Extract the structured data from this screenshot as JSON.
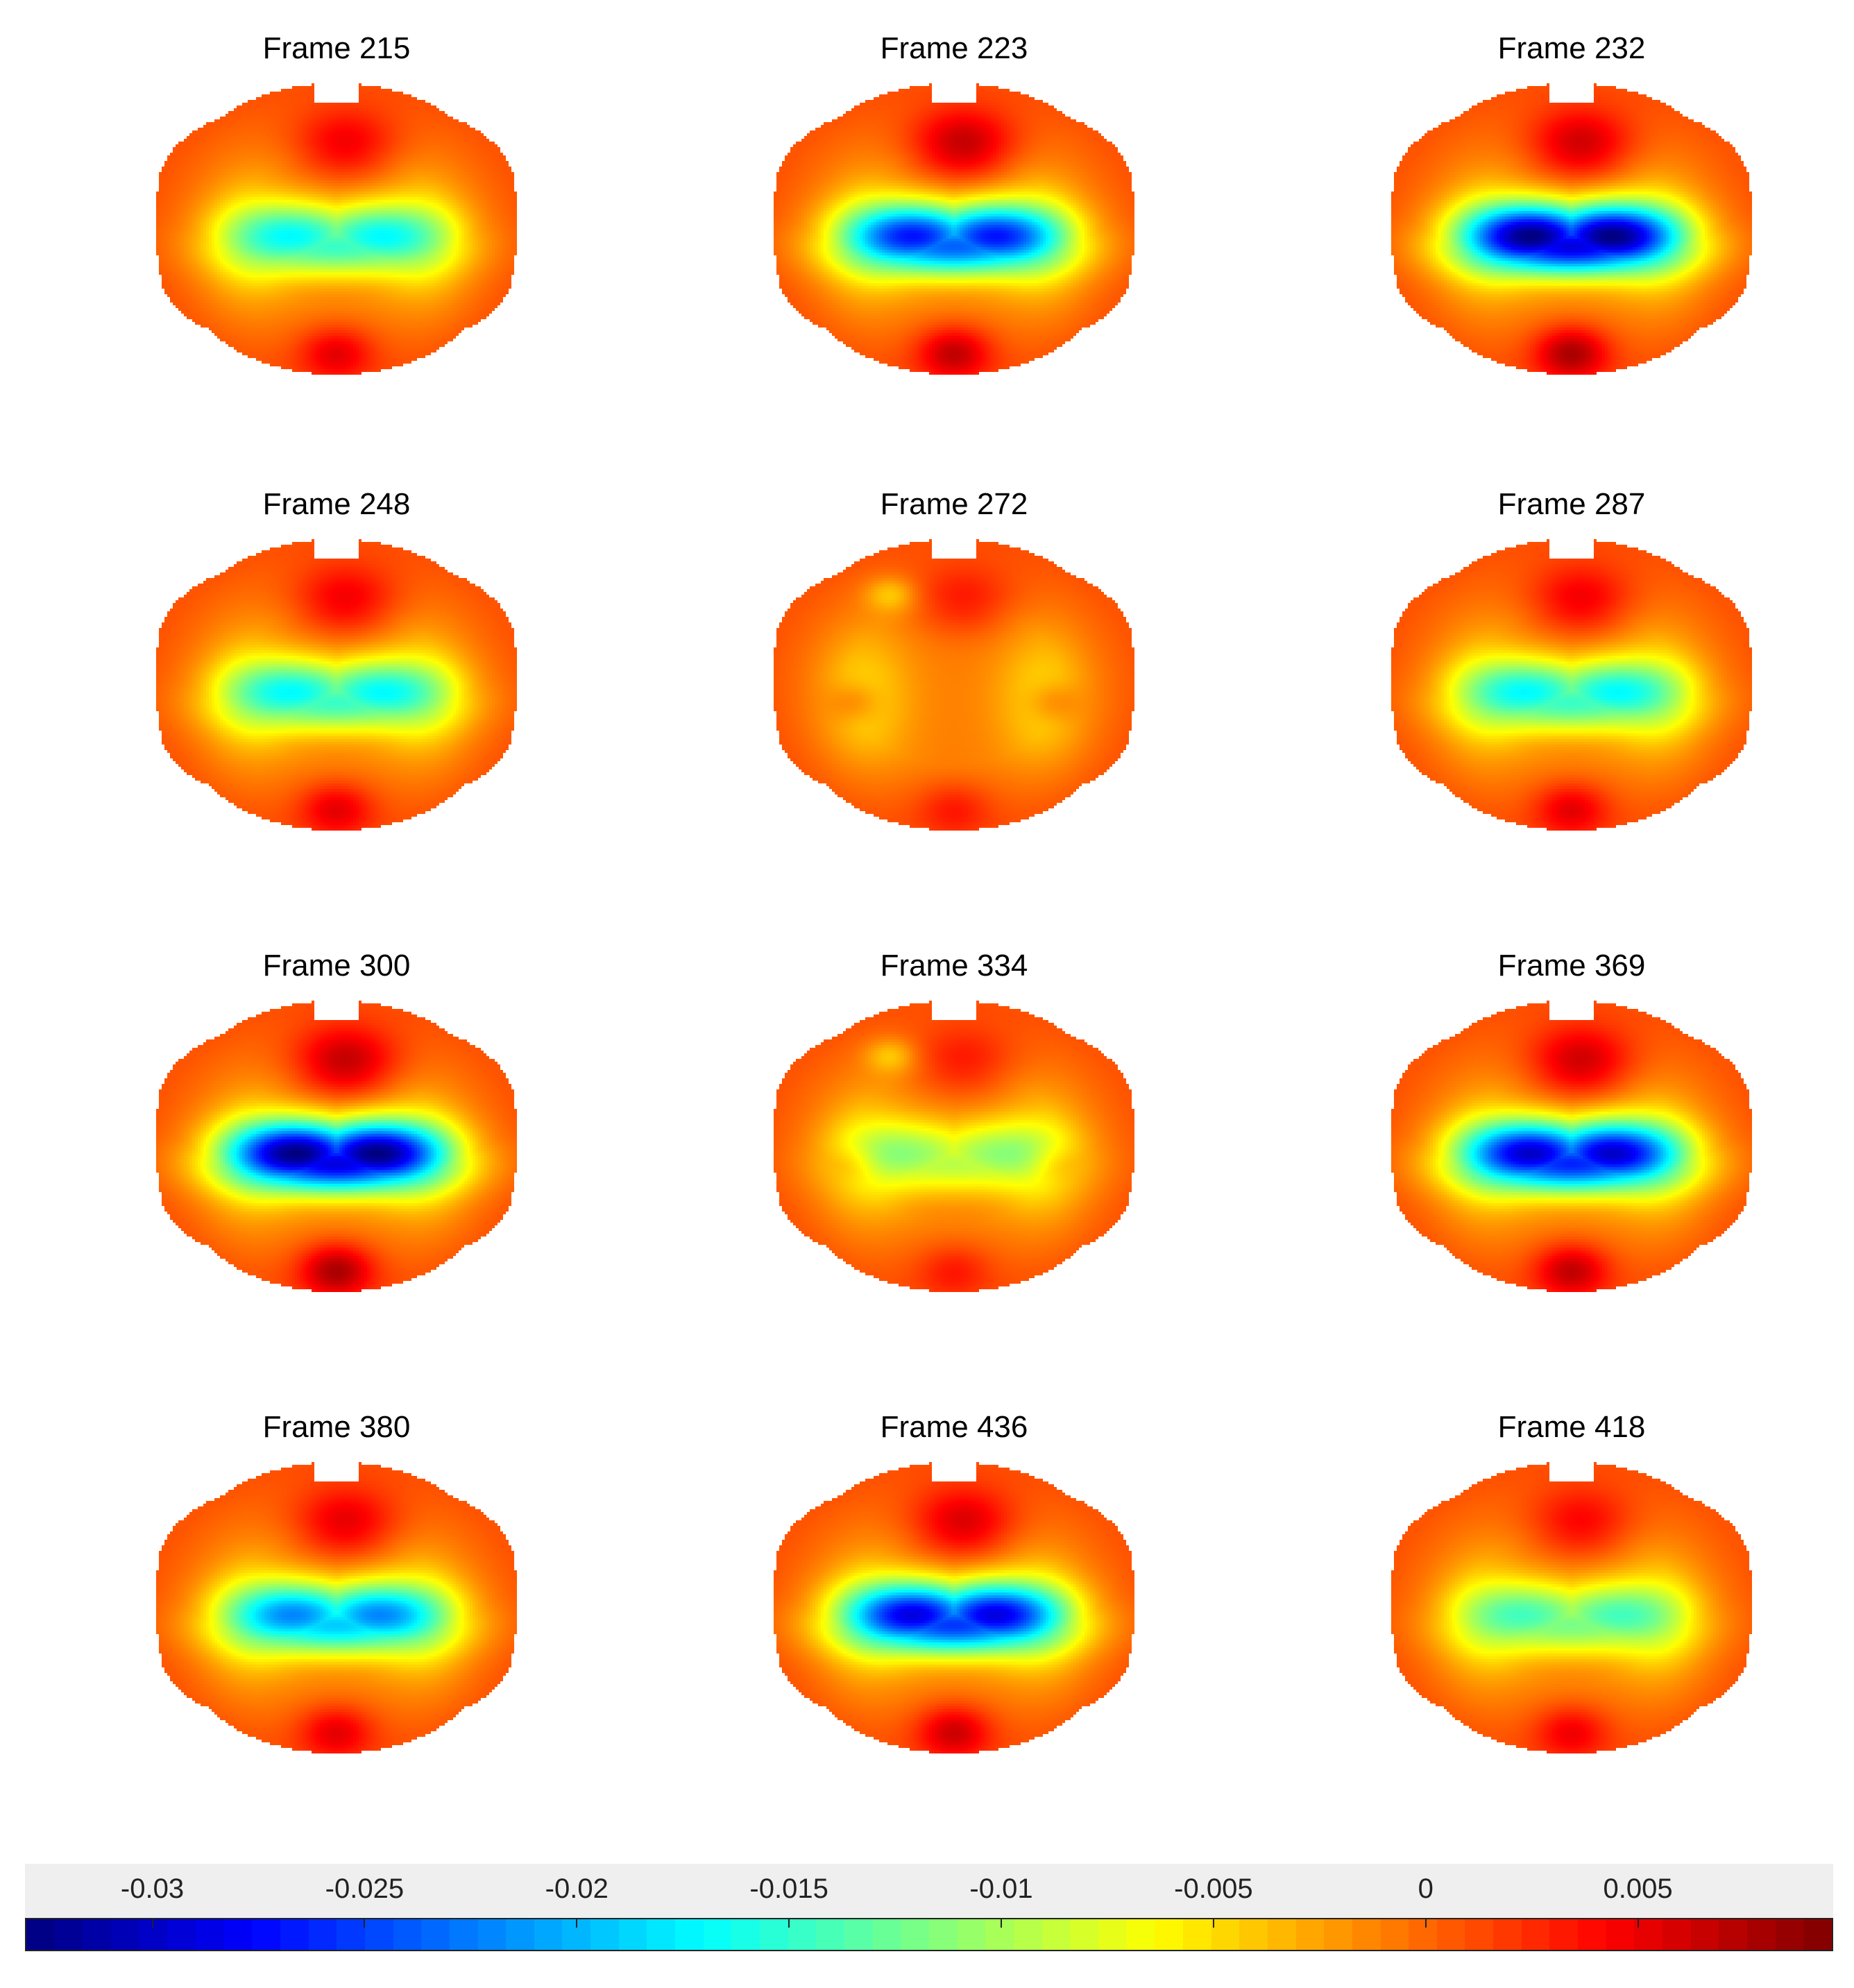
{
  "chart_data": {
    "type": "heatmap",
    "panels": [
      {
        "title": "Frame 215",
        "frame": 215,
        "center_min": -0.014,
        "top_blob": 0.0055,
        "bottom_blob": 0.005
      },
      {
        "title": "Frame 223",
        "frame": 223,
        "center_min": -0.024,
        "top_blob": 0.0075,
        "bottom_blob": 0.0065
      },
      {
        "title": "Frame 232",
        "frame": 232,
        "center_min": -0.03,
        "top_blob": 0.007,
        "bottom_blob": 0.0075
      },
      {
        "title": "Frame 248",
        "frame": 248,
        "center_min": -0.014,
        "top_blob": 0.0055,
        "bottom_blob": 0.005
      },
      {
        "title": "Frame 272",
        "frame": 272,
        "center_min": 0.001,
        "top_blob": 0.004,
        "bottom_blob": 0.003,
        "side_blobs": true
      },
      {
        "title": "Frame 287",
        "frame": 287,
        "center_min": -0.014,
        "top_blob": 0.0055,
        "bottom_blob": 0.005
      },
      {
        "title": "Frame 300",
        "frame": 300,
        "center_min": -0.03,
        "top_blob": 0.0075,
        "bottom_blob": 0.0075
      },
      {
        "title": "Frame 334",
        "frame": 334,
        "center_min": -0.008,
        "top_blob": 0.004,
        "bottom_blob": 0.003,
        "side_blobs": true
      },
      {
        "title": "Frame 369",
        "frame": 369,
        "center_min": -0.027,
        "top_blob": 0.007,
        "bottom_blob": 0.0065
      },
      {
        "title": "Frame 380",
        "frame": 380,
        "center_min": -0.019,
        "top_blob": 0.006,
        "bottom_blob": 0.005
      },
      {
        "title": "Frame 436",
        "frame": 436,
        "center_min": -0.026,
        "top_blob": 0.0065,
        "bottom_blob": 0.006
      },
      {
        "title": "Frame 418",
        "frame": 418,
        "center_min": -0.011,
        "top_blob": 0.005,
        "bottom_blob": 0.0045
      }
    ],
    "colorbar": {
      "range": [
        -0.033,
        0.0096
      ],
      "tick_values": [
        -0.03,
        -0.025,
        -0.02,
        -0.015,
        -0.01,
        -0.005,
        0,
        0.005
      ],
      "tick_labels": [
        "-0.03",
        "-0.025",
        "-0.02",
        "-0.015",
        "-0.01",
        "-0.005",
        "0",
        "0.005"
      ],
      "colormap": "jet",
      "position": "bottom"
    }
  }
}
